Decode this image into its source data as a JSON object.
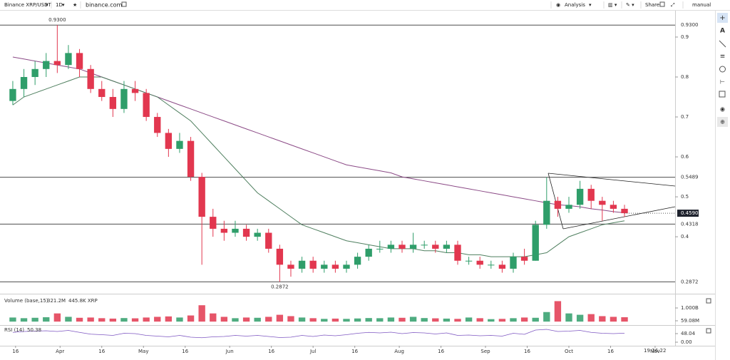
{
  "toolbar": {
    "symbol": "Binance XRP/USDT",
    "interval": "1D",
    "site": "binance.com",
    "analysis": "Analysis",
    "share": "Share",
    "mode": "manual"
  },
  "clock": "19:26:22",
  "chart_data": [
    {
      "type": "candlestick",
      "x": [
        74,
        78,
        82,
        86,
        90,
        94,
        98,
        102,
        106,
        110,
        114,
        118,
        122,
        126,
        130,
        134,
        138,
        142,
        146,
        150,
        154,
        158,
        162,
        166,
        170,
        174,
        178,
        182,
        186,
        190,
        194,
        198,
        202,
        206,
        210,
        214,
        218,
        222,
        226,
        230,
        234,
        238,
        242,
        246,
        250,
        254,
        258,
        262,
        266,
        270,
        274,
        278,
        282,
        286,
        290,
        294
      ],
      "open": [
        0.74,
        0.77,
        0.8,
        0.82,
        0.84,
        0.83,
        0.86,
        0.82,
        0.77,
        0.75,
        0.72,
        0.77,
        0.76,
        0.7,
        0.66,
        0.62,
        0.64,
        0.55,
        0.45,
        0.42,
        0.41,
        0.42,
        0.4,
        0.41,
        0.37,
        0.33,
        0.32,
        0.34,
        0.32,
        0.33,
        0.32,
        0.33,
        0.35,
        0.37,
        0.37,
        0.38,
        0.37,
        0.38,
        0.38,
        0.37,
        0.38,
        0.34,
        0.34,
        0.33,
        0.33,
        0.32,
        0.35,
        0.34,
        0.43,
        0.49,
        0.47,
        0.48,
        0.52,
        0.49,
        0.48,
        0.47
      ],
      "high": [
        0.79,
        0.82,
        0.84,
        0.86,
        0.93,
        0.88,
        0.87,
        0.83,
        0.79,
        0.77,
        0.79,
        0.79,
        0.77,
        0.71,
        0.67,
        0.66,
        0.65,
        0.56,
        0.47,
        0.44,
        0.44,
        0.43,
        0.42,
        0.42,
        0.38,
        0.34,
        0.35,
        0.35,
        0.34,
        0.34,
        0.34,
        0.36,
        0.38,
        0.39,
        0.39,
        0.39,
        0.41,
        0.39,
        0.39,
        0.39,
        0.39,
        0.35,
        0.35,
        0.34,
        0.34,
        0.36,
        0.37,
        0.44,
        0.5489,
        0.5,
        0.5,
        0.54,
        0.53,
        0.5,
        0.49,
        0.48
      ],
      "low": [
        0.73,
        0.75,
        0.78,
        0.8,
        0.81,
        0.82,
        0.8,
        0.76,
        0.74,
        0.7,
        0.71,
        0.74,
        0.69,
        0.65,
        0.6,
        0.61,
        0.54,
        0.33,
        0.4,
        0.39,
        0.4,
        0.39,
        0.39,
        0.36,
        0.2872,
        0.3,
        0.31,
        0.31,
        0.31,
        0.31,
        0.31,
        0.32,
        0.34,
        0.36,
        0.36,
        0.36,
        0.36,
        0.37,
        0.36,
        0.36,
        0.33,
        0.33,
        0.32,
        0.32,
        0.31,
        0.31,
        0.33,
        0.34,
        0.42,
        0.45,
        0.46,
        0.47,
        0.47,
        0.44,
        0.46,
        0.45
      ],
      "close": [
        0.77,
        0.8,
        0.82,
        0.84,
        0.83,
        0.86,
        0.82,
        0.77,
        0.75,
        0.72,
        0.77,
        0.76,
        0.7,
        0.66,
        0.62,
        0.64,
        0.55,
        0.45,
        0.42,
        0.41,
        0.42,
        0.4,
        0.41,
        0.37,
        0.33,
        0.32,
        0.34,
        0.32,
        0.33,
        0.32,
        0.33,
        0.35,
        0.37,
        0.37,
        0.38,
        0.37,
        0.38,
        0.38,
        0.37,
        0.38,
        0.34,
        0.34,
        0.33,
        0.33,
        0.32,
        0.35,
        0.34,
        0.43,
        0.49,
        0.47,
        0.48,
        0.52,
        0.49,
        0.48,
        0.47,
        0.459
      ],
      "up_color": "#2f9e6a",
      "down_color": "#e2374f",
      "lines": [
        {
          "color": "#8b4a86",
          "values": [
            0.85,
            0.845,
            0.84,
            0.835,
            0.83,
            0.825,
            0.82,
            0.81,
            0.8,
            0.79,
            0.78,
            0.77,
            0.76,
            0.75,
            0.74,
            0.73,
            0.72,
            0.71,
            0.7,
            0.69,
            0.68,
            0.67,
            0.66,
            0.65,
            0.64,
            0.63,
            0.62,
            0.61,
            0.6,
            0.59,
            0.58,
            0.575,
            0.57,
            0.565,
            0.56,
            0.55,
            0.545,
            0.54,
            0.535,
            0.53,
            0.525,
            0.52,
            0.515,
            0.51,
            0.505,
            0.5,
            0.495,
            0.49,
            0.485,
            0.48,
            0.478,
            0.475,
            0.47,
            0.467,
            0.463,
            0.46
          ]
        },
        {
          "color": "#4f7f5f",
          "values": [
            0.73,
            0.75,
            0.76,
            0.77,
            0.78,
            0.79,
            0.8,
            0.8,
            0.8,
            0.79,
            0.78,
            0.77,
            0.76,
            0.75,
            0.73,
            0.71,
            0.69,
            0.66,
            0.63,
            0.6,
            0.57,
            0.54,
            0.51,
            0.49,
            0.47,
            0.45,
            0.43,
            0.42,
            0.41,
            0.4,
            0.39,
            0.385,
            0.38,
            0.375,
            0.37,
            0.37,
            0.37,
            0.365,
            0.365,
            0.36,
            0.36,
            0.355,
            0.355,
            0.35,
            0.35,
            0.35,
            0.35,
            0.355,
            0.36,
            0.38,
            0.4,
            0.41,
            0.42,
            0.43,
            0.435,
            0.44
          ]
        }
      ],
      "levels": [
        {
          "value": 0.93,
          "label": "0.9300"
        },
        0.5489,
        0.4318,
        0.2872
      ],
      "annotations": [
        {
          "value": 0.93,
          "label": "0.9300"
        },
        0.2872
      ],
      "last_price": {
        "value": 0.459,
        "label": "0.4590"
      },
      "xlim": [
        69.4,
        312.2
      ],
      "xticks": [
        {
          "value": 75,
          "label": "16"
        },
        {
          "value": 91,
          "label": "Apr"
        },
        {
          "value": 106,
          "label": "16"
        },
        {
          "value": 121,
          "label": "May"
        },
        {
          "value": 136,
          "label": "16"
        },
        {
          "value": 152,
          "label": "Jun"
        },
        {
          "value": 167,
          "label": "16"
        },
        {
          "value": 182,
          "label": "Jul"
        },
        {
          "value": 197,
          "label": "16"
        },
        {
          "value": 213,
          "label": "Aug"
        },
        {
          "value": 228,
          "label": "16"
        },
        {
          "value": 244,
          "label": "Sep"
        },
        {
          "value": 259,
          "label": "16"
        },
        {
          "value": 274,
          "label": "Oct"
        },
        {
          "value": 289,
          "label": "16"
        },
        {
          "value": 305,
          "label": "Nov"
        }
      ],
      "ylim": [
        0.261,
        0.966
      ],
      "yticks": [
        0.4,
        0.5,
        0.6,
        0.7,
        0.8,
        0.9
      ]
    },
    {
      "type": "bar",
      "title": "Volume (base,15)",
      "legend_values": [
        "321.2M",
        "445.8K XRP"
      ],
      "values": [
        300000000,
        250000000,
        280000000,
        320000000,
        600000000,
        350000000,
        280000000,
        300000000,
        250000000,
        220000000,
        260000000,
        240000000,
        300000000,
        350000000,
        380000000,
        300000000,
        450000000,
        1200000000,
        600000000,
        350000000,
        250000000,
        300000000,
        280000000,
        350000000,
        500000000,
        400000000,
        300000000,
        250000000,
        200000000,
        220000000,
        200000000,
        230000000,
        260000000,
        250000000,
        300000000,
        280000000,
        350000000,
        260000000,
        240000000,
        220000000,
        200000000,
        300000000,
        250000000,
        180000000,
        200000000,
        250000000,
        300000000,
        280000000,
        700000000,
        1500000000,
        600000000,
        500000000,
        550000000,
        400000000,
        350000000,
        321200000
      ],
      "ylim": [
        -202000000,
        1889000000
      ],
      "yticks": [
        {
          "value": 1000000000,
          "label": "1.000B"
        },
        {
          "value": 59080000,
          "label": "59.08M"
        }
      ]
    },
    {
      "type": "line",
      "title": "RSI (14)",
      "color": "#7e57c2",
      "values": [
        55,
        60,
        62,
        64,
        60,
        66,
        55,
        45,
        42,
        38,
        50,
        48,
        38,
        34,
        30,
        38,
        28,
        25,
        30,
        32,
        38,
        34,
        38,
        32,
        26,
        28,
        38,
        32,
        40,
        36,
        42,
        50,
        55,
        52,
        56,
        48,
        54,
        52,
        46,
        52,
        38,
        40,
        36,
        38,
        34,
        50,
        44,
        68,
        72,
        60,
        62,
        66,
        55,
        50,
        48,
        50.38
      ],
      "ylim": [
        -8,
        88
      ],
      "yticks": [
        48.04,
        {
          "value": 0,
          "label": "0.00"
        }
      ]
    }
  ]
}
